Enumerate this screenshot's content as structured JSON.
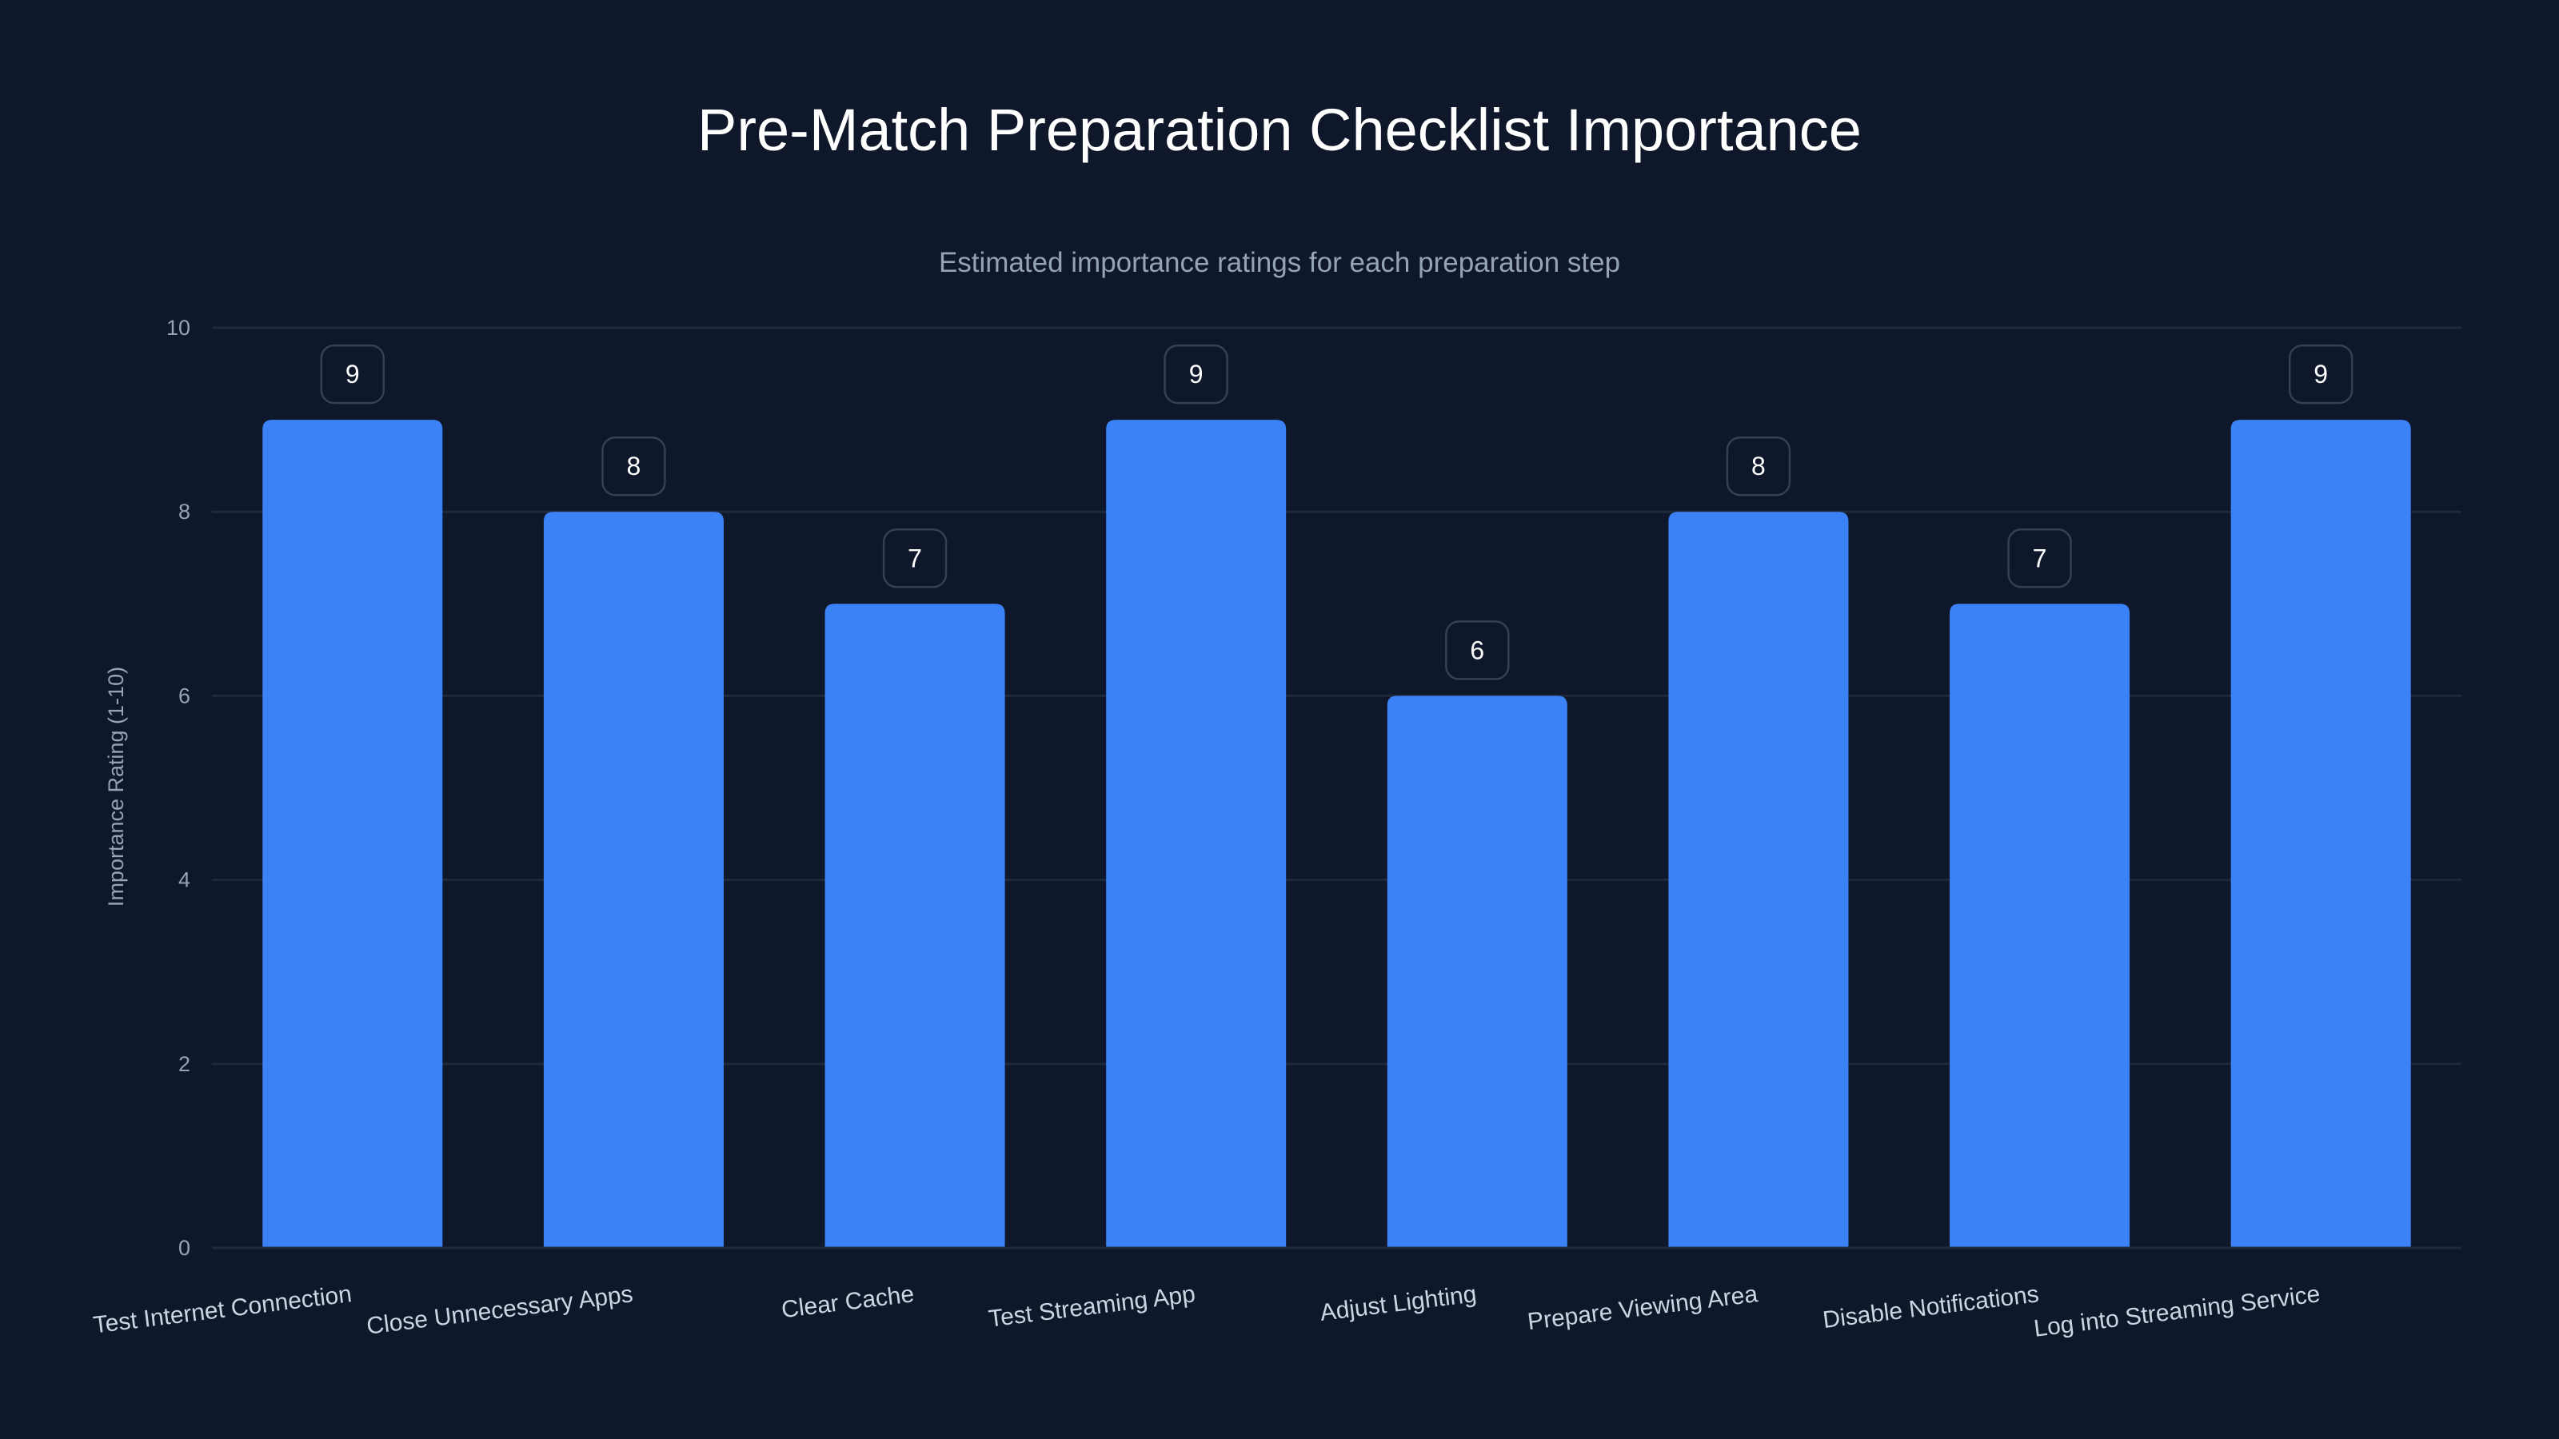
{
  "chart_data": {
    "type": "bar",
    "title": "Pre-Match Preparation Checklist Importance",
    "subtitle": "Estimated importance ratings for each preparation step",
    "xlabel": "",
    "ylabel": "Importance Rating (1-10)",
    "ylim": [
      0,
      10
    ],
    "yticks": [
      0,
      2,
      4,
      6,
      8,
      10
    ],
    "grid": true,
    "categories": [
      "Test Internet Connection",
      "Close Unnecessary Apps",
      "Clear Cache",
      "Test Streaming App",
      "Adjust Lighting",
      "Prepare Viewing Area",
      "Disable Notifications",
      "Log into Streaming Service"
    ],
    "values": [
      9,
      8,
      7,
      9,
      6,
      8,
      7,
      9
    ],
    "bar_color": "#3b82f6",
    "background": "#0f172a"
  }
}
